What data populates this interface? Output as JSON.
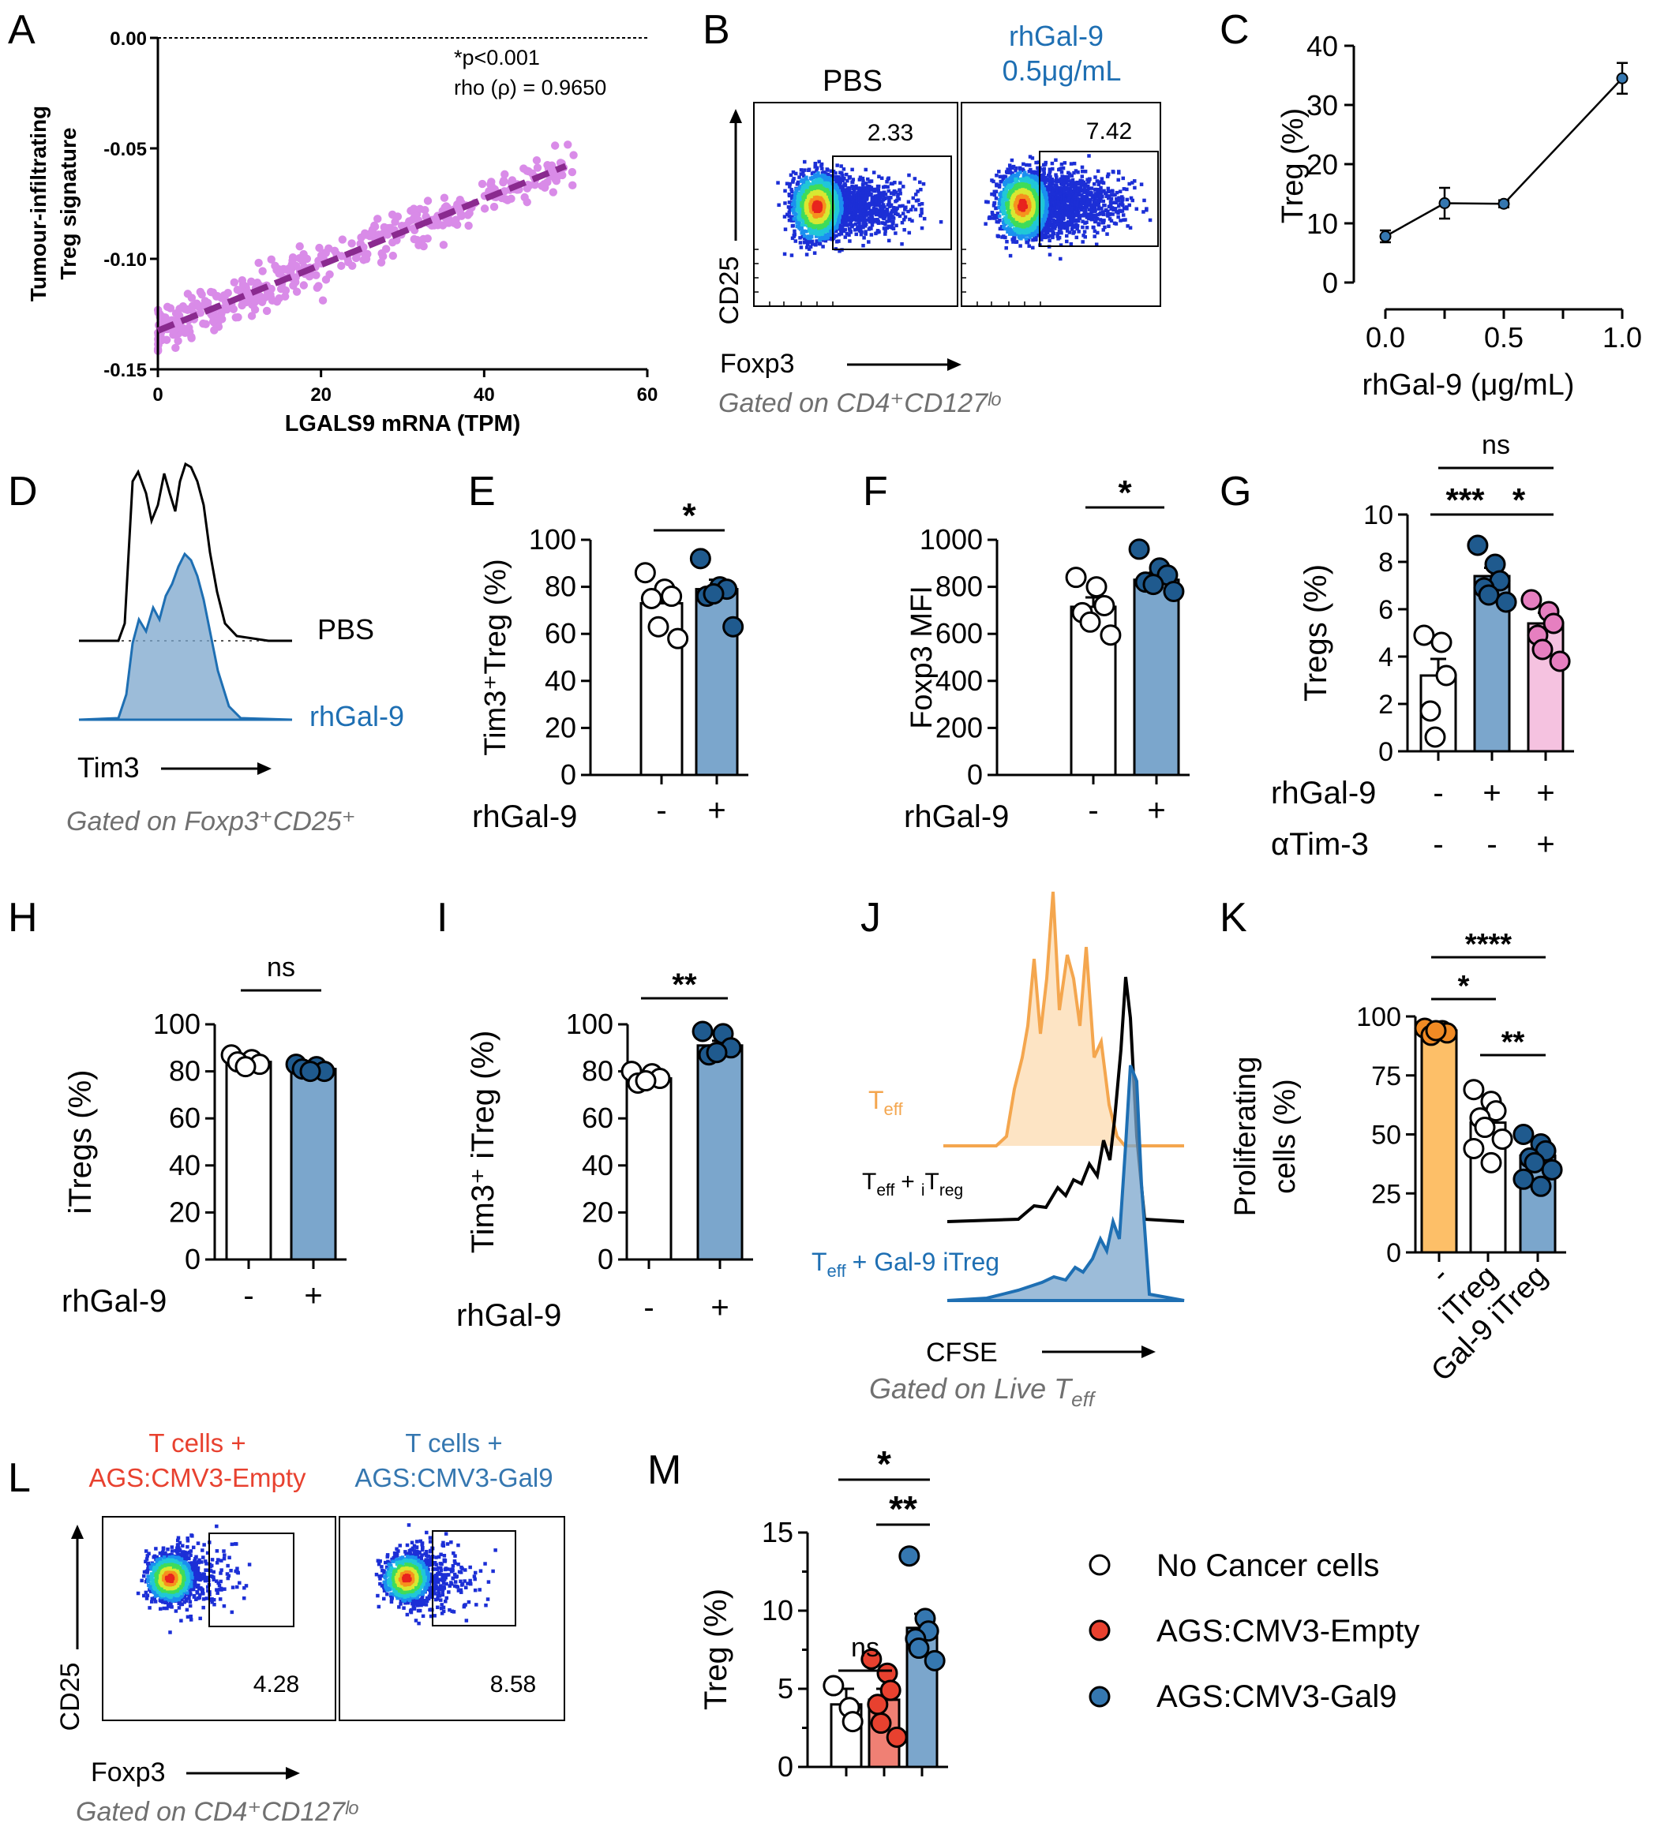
{
  "colors": {
    "scatter_point": "#d98be8",
    "scatter_line": "#8a2a8f",
    "blue_text": "#1e6fb3",
    "bar_blue": "#7ba6cc",
    "dot_blue": "#1f5a8e",
    "bar_pink": "#f5c2e0",
    "dot_pink": "#e67fc0",
    "bar_orange": "#fdbf68",
    "dot_orange": "#f08a24",
    "bar_red": "#f08074",
    "dot_red": "#e8412f",
    "dot_steel": "#3577b0",
    "teff_orange": "#f4a64e",
    "grey_text": "#707070"
  },
  "chart_data": [
    {
      "id": "A",
      "type": "scatter",
      "xlabel": "LGALS9 mRNA (TPM)",
      "ylabel_line1": "Tumour-infiltrating",
      "ylabel_line2": "Treg signature",
      "xlim": [
        0,
        60
      ],
      "ylim": [
        -0.15,
        0.0
      ],
      "xticks": [
        "0",
        "20",
        "40",
        "60"
      ],
      "yticks": [
        "0.00",
        "-0.05",
        "-0.10",
        "-0.15"
      ],
      "annotation_p": "*p<0.001",
      "annotation_rho": "rho (ρ) = 0.9650",
      "fit": {
        "x": [
          0,
          50
        ],
        "y": [
          -0.1325,
          -0.058
        ]
      },
      "point_count": 420
    },
    {
      "id": "B",
      "type": "flow-density",
      "panels": [
        {
          "label": "PBS",
          "gate_value": "2.33",
          "label_color": "black"
        },
        {
          "label_line1": "rhGal-9",
          "label_line2": "0.5μg/mL",
          "gate_value": "7.42",
          "label_color": "blue"
        }
      ],
      "xlabel": "Foxp3",
      "ylabel": "CD25",
      "gating": "Gated on CD4⁺CD127ˡᵒ"
    },
    {
      "id": "C",
      "type": "line",
      "xlabel": "rhGal-9 (μg/mL)",
      "ylabel": "Treg (%)",
      "xlim": [
        0,
        1.0
      ],
      "ylim": [
        0,
        40
      ],
      "xticks": [
        "0.0",
        "0.5",
        "1.0"
      ],
      "yticks": [
        "0",
        "10",
        "20",
        "30",
        "40"
      ],
      "x": [
        0.0,
        0.25,
        0.5,
        1.0
      ],
      "y": [
        7.8,
        13.4,
        13.3,
        34.5
      ],
      "err": [
        1.0,
        2.6,
        0.6,
        2.6
      ]
    },
    {
      "id": "D",
      "type": "histogram",
      "series": [
        "PBS",
        "rhGal-9"
      ],
      "xlabel": "Tim3",
      "gating": "Gated on Foxp3⁺CD25⁺"
    },
    {
      "id": "E",
      "type": "bar",
      "ylabel": "Tim3⁺Treg (%)",
      "ylim": [
        0,
        100
      ],
      "yticks": [
        "0",
        "20",
        "40",
        "60",
        "80",
        "100"
      ],
      "factor_label": "rhGal-9",
      "categories": [
        "-",
        "+"
      ],
      "values": [
        73,
        79
      ],
      "sem": [
        5,
        4
      ],
      "points": [
        [
          86,
          79,
          76,
          75,
          63,
          58
        ],
        [
          92,
          80,
          79,
          76,
          77,
          63
        ]
      ],
      "significance": [
        {
          "label": "*",
          "from": 0,
          "to": 1
        }
      ]
    },
    {
      "id": "F",
      "type": "bar",
      "ylabel": "Foxp3 MFI",
      "ylim": [
        0,
        1000
      ],
      "yticks": [
        "0",
        "200",
        "400",
        "600",
        "800",
        "1000"
      ],
      "factor_label": "rhGal-9",
      "categories": [
        "-",
        "+"
      ],
      "values": [
        715,
        830
      ],
      "sem": [
        40,
        30
      ],
      "points": [
        [
          840,
          800,
          720,
          690,
          650,
          595
        ],
        [
          960,
          880,
          850,
          820,
          810,
          780
        ]
      ],
      "significance": [
        {
          "label": "*",
          "from": 0,
          "to": 1
        }
      ]
    },
    {
      "id": "G",
      "type": "bar",
      "ylabel": "Tregs (%)",
      "ylim": [
        0,
        10
      ],
      "yticks": [
        "0",
        "2",
        "4",
        "6",
        "8",
        "10"
      ],
      "factor_labels": [
        "rhGal-9",
        "αTim-3"
      ],
      "factor_values": [
        [
          "-",
          "+",
          "+"
        ],
        [
          "-",
          "-",
          "+"
        ]
      ],
      "values": [
        3.2,
        7.4,
        5.4
      ],
      "sem": [
        0.7,
        0.35,
        0.45
      ],
      "points": [
        [
          4.9,
          4.6,
          3.2,
          1.7,
          0.6
        ],
        [
          8.7,
          7.9,
          7.2,
          6.9,
          6.6,
          6.3
        ],
        [
          6.4,
          5.9,
          5.4,
          4.9,
          4.3,
          3.8
        ]
      ],
      "significance": [
        {
          "label": "***",
          "from": 0,
          "to": 1
        },
        {
          "label": "*",
          "from": 1,
          "to": 2
        },
        {
          "label": "ns",
          "from": 0,
          "to": 2
        }
      ]
    },
    {
      "id": "H",
      "type": "bar",
      "ylabel": "iTregs (%)",
      "ylim": [
        0,
        100
      ],
      "yticks": [
        "0",
        "20",
        "40",
        "60",
        "80",
        "100"
      ],
      "factor_label": "rhGal-9",
      "categories": [
        "-",
        "+"
      ],
      "values": [
        84,
        81
      ],
      "sem": [
        1.5,
        1
      ],
      "points": [
        [
          87,
          85,
          83,
          84,
          82
        ],
        [
          83,
          82,
          80,
          81,
          80
        ]
      ],
      "significance": [
        {
          "label": "ns",
          "from": 0,
          "to": 1
        }
      ]
    },
    {
      "id": "I",
      "type": "bar",
      "ylabel": "Tim3⁺ iTreg (%)",
      "ylim": [
        0,
        100
      ],
      "yticks": [
        "0",
        "20",
        "40",
        "60",
        "80",
        "100"
      ],
      "factor_label": "rhGal-9",
      "categories": [
        "-",
        "+"
      ],
      "values": [
        77,
        91
      ],
      "sem": [
        1.5,
        2
      ],
      "points": [
        [
          80,
          79,
          77,
          75,
          76
        ],
        [
          97,
          96,
          90,
          87,
          88
        ]
      ],
      "significance": [
        {
          "label": "**",
          "from": 0,
          "to": 1
        }
      ]
    },
    {
      "id": "J",
      "type": "histogram",
      "series": [
        "T",
        "T + T",
        "T + Gal-9 iTreg"
      ],
      "labels": {
        "teff": "T",
        "eff": "eff",
        "plus": "+",
        "i": "i",
        "treg": "T",
        "reg": "reg",
        "gal9": "+ Gal-9 iTreg"
      },
      "xlabel": "CFSE",
      "gating_prefix": "Gated on Live T",
      "gating_sub": "eff"
    },
    {
      "id": "K",
      "type": "bar",
      "ylabel_line1": "Proliferating",
      "ylabel_line2": "cells (%)",
      "ylim": [
        0,
        100
      ],
      "yticks": [
        "0",
        "25",
        "50",
        "75",
        "100"
      ],
      "categories": [
        "-",
        "iTreg",
        "Gal-9 iTreg"
      ],
      "values": [
        94,
        55,
        41
      ],
      "sem": [
        1,
        4,
        3
      ],
      "points": [
        [
          95,
          94,
          93,
          92,
          94
        ],
        [
          69,
          64,
          60,
          57,
          53,
          48,
          44,
          38
        ],
        [
          50,
          46,
          43,
          40,
          38,
          35,
          31,
          28
        ]
      ],
      "significance": [
        {
          "label": "*",
          "from": 0,
          "to": 1
        },
        {
          "label": "**",
          "from": 1,
          "to": 2
        },
        {
          "label": "****",
          "from": 0,
          "to": 2
        }
      ]
    },
    {
      "id": "L",
      "type": "flow-density",
      "panels": [
        {
          "label_line1": "T cells +",
          "label_line2": "AGS:CMV3-Empty",
          "gate_value": "4.28",
          "label_color": "red"
        },
        {
          "label_line1": "T cells +",
          "label_line2": "AGS:CMV3-Gal9",
          "gate_value": "8.58",
          "label_color": "steel"
        }
      ],
      "xlabel": "Foxp3",
      "ylabel": "CD25",
      "gating": "Gated on CD4⁺CD127ˡᵒ"
    },
    {
      "id": "M",
      "type": "bar",
      "ylabel": "Treg (%)",
      "ylim": [
        0,
        15
      ],
      "yticks": [
        "0",
        "5",
        "10",
        "15"
      ],
      "values": [
        4.0,
        4.3,
        8.9
      ],
      "sem": [
        1.0,
        0.7,
        0.9
      ],
      "points": [
        [
          5.2,
          3.8,
          2.9
        ],
        [
          6.9,
          6.0,
          4.9,
          4.0,
          2.8,
          1.9
        ],
        [
          13.5,
          9.5,
          8.7,
          8.2,
          7.6,
          6.8
        ]
      ],
      "significance": [
        {
          "label": "ns",
          "from": 0,
          "to": 1
        },
        {
          "label": "**",
          "from": 1,
          "to": 2
        },
        {
          "label": "*",
          "from": 0,
          "to": 2
        }
      ],
      "legend": [
        "No Cancer cells",
        "AGS:CMV3-Empty",
        "AGS:CMV3-Gal9"
      ]
    }
  ]
}
